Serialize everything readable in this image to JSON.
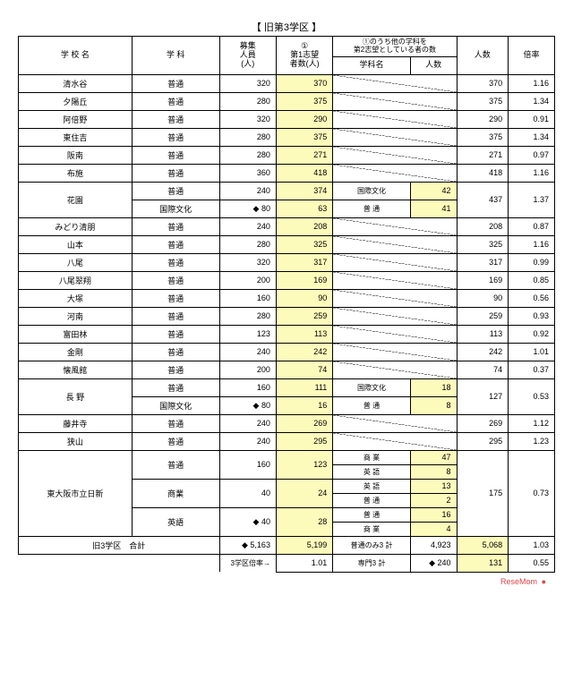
{
  "title": "【 旧第3学区 】",
  "headers": {
    "school": "学 校 名",
    "dept": "学 科",
    "capacity": "募集\n人員\n(人)",
    "first": "①\n第1志望\n者数(人)",
    "second_head": "①のうち他の学科を\n第2志望としている者の数",
    "dept2": "学科名",
    "count2": "人数",
    "total": "人数",
    "ratio": "倍率"
  },
  "rows": [
    {
      "school": "清水谷",
      "dept": "普通",
      "cap": "320",
      "first": "370",
      "d2": "diag",
      "c2": "diag",
      "tot": "370",
      "rat": "1.16"
    },
    {
      "school": "夕陽丘",
      "dept": "普通",
      "cap": "280",
      "first": "375",
      "d2": "diag",
      "c2": "diag",
      "tot": "375",
      "rat": "1.34"
    },
    {
      "school": "阿倍野",
      "dept": "普通",
      "cap": "320",
      "first": "290",
      "d2": "diag",
      "c2": "diag",
      "tot": "290",
      "rat": "0.91"
    },
    {
      "school": "東住吉",
      "dept": "普通",
      "cap": "280",
      "first": "375",
      "d2": "diag",
      "c2": "diag",
      "tot": "375",
      "rat": "1.34"
    },
    {
      "school": "阪南",
      "dept": "普通",
      "cap": "280",
      "first": "271",
      "d2": "diag",
      "c2": "diag",
      "tot": "271",
      "rat": "0.97"
    },
    {
      "school": "布施",
      "dept": "普通",
      "cap": "360",
      "first": "418",
      "d2": "diag",
      "c2": "diag",
      "tot": "418",
      "rat": "1.16"
    }
  ],
  "hanazono": {
    "school": "花園",
    "r1": {
      "dept": "普通",
      "cap": "240",
      "first": "374",
      "d2": "国際文化",
      "c2": "42"
    },
    "r2": {
      "dept": "国際文化",
      "cap": "◆ 80",
      "first": "63",
      "d2": "普 通",
      "c2": "41"
    },
    "tot": "437",
    "rat": "1.37"
  },
  "rows2": [
    {
      "school": "みどり清朋",
      "dept": "普通",
      "cap": "240",
      "first": "208",
      "d2": "diag",
      "c2": "diag",
      "tot": "208",
      "rat": "0.87"
    },
    {
      "school": "山本",
      "dept": "普通",
      "cap": "280",
      "first": "325",
      "d2": "diag",
      "c2": "diag",
      "tot": "325",
      "rat": "1.16"
    },
    {
      "school": "八尾",
      "dept": "普通",
      "cap": "320",
      "first": "317",
      "d2": "diag",
      "c2": "diag",
      "tot": "317",
      "rat": "0.99"
    },
    {
      "school": "八尾翠翔",
      "dept": "普通",
      "cap": "200",
      "first": "169",
      "d2": "diag",
      "c2": "diag",
      "tot": "169",
      "rat": "0.85"
    },
    {
      "school": "大塚",
      "dept": "普通",
      "cap": "160",
      "first": "90",
      "d2": "diag",
      "c2": "diag",
      "tot": "90",
      "rat": "0.56"
    },
    {
      "school": "河南",
      "dept": "普通",
      "cap": "280",
      "first": "259",
      "d2": "diag",
      "c2": "diag",
      "tot": "259",
      "rat": "0.93"
    },
    {
      "school": "富田林",
      "dept": "普通",
      "cap": "123",
      "first": "113",
      "d2": "diag",
      "c2": "diag",
      "tot": "113",
      "rat": "0.92"
    },
    {
      "school": "金剛",
      "dept": "普通",
      "cap": "240",
      "first": "242",
      "d2": "diag",
      "c2": "diag",
      "tot": "242",
      "rat": "1.01"
    },
    {
      "school": "懐風館",
      "dept": "普通",
      "cap": "200",
      "first": "74",
      "d2": "diag",
      "c2": "diag",
      "tot": "74",
      "rat": "0.37"
    }
  ],
  "nagano": {
    "school": "長 野",
    "r1": {
      "dept": "普通",
      "cap": "160",
      "first": "111",
      "d2": "国際文化",
      "c2": "18"
    },
    "r2": {
      "dept": "国際文化",
      "cap": "◆ 80",
      "first": "16",
      "d2": "普 通",
      "c2": "8"
    },
    "tot": "127",
    "rat": "0.53"
  },
  "rows3": [
    {
      "school": "藤井寺",
      "dept": "普通",
      "cap": "240",
      "first": "269",
      "d2": "diag",
      "c2": "diag",
      "tot": "269",
      "rat": "1.12"
    },
    {
      "school": "狭山",
      "dept": "普通",
      "cap": "240",
      "first": "295",
      "d2": "diag",
      "c2": "diag",
      "tot": "295",
      "rat": "1.23"
    }
  ],
  "nisshin": {
    "school": "東大阪市立日新",
    "r": [
      {
        "dept": "普通",
        "cap": "160",
        "first": "123",
        "d2": "商 業",
        "c2": "47"
      },
      {
        "dept": "",
        "cap": "",
        "first": "",
        "d2": "英 語",
        "c2": "8"
      },
      {
        "dept": "商業",
        "cap": "40",
        "first": "24",
        "d2": "英 語",
        "c2": "13"
      },
      {
        "dept": "",
        "cap": "",
        "first": "",
        "d2": "普 通",
        "c2": "2"
      },
      {
        "dept": "英語",
        "cap": "◆ 40",
        "first": "28",
        "d2": "普 通",
        "c2": "16"
      },
      {
        "dept": "",
        "cap": "",
        "first": "",
        "d2": "商 業",
        "c2": "4"
      }
    ],
    "tot": "175",
    "rat": "0.73"
  },
  "totals": {
    "label": "旧3学区　合計",
    "cap": "◆ 5,163",
    "first": "5,199",
    "d2": "普通のみ3 計",
    "c2": "4,923",
    "tot": "5,068",
    "rat": "1.03",
    "sub_label": "3学区倍率→",
    "sub_first": "1.01",
    "sub_d2": "専門3 計",
    "sub_c2": "◆ 240",
    "sub_tot": "131",
    "sub_rat": "0.55"
  },
  "footer_label": "ReseMom",
  "footer_dot": "●"
}
